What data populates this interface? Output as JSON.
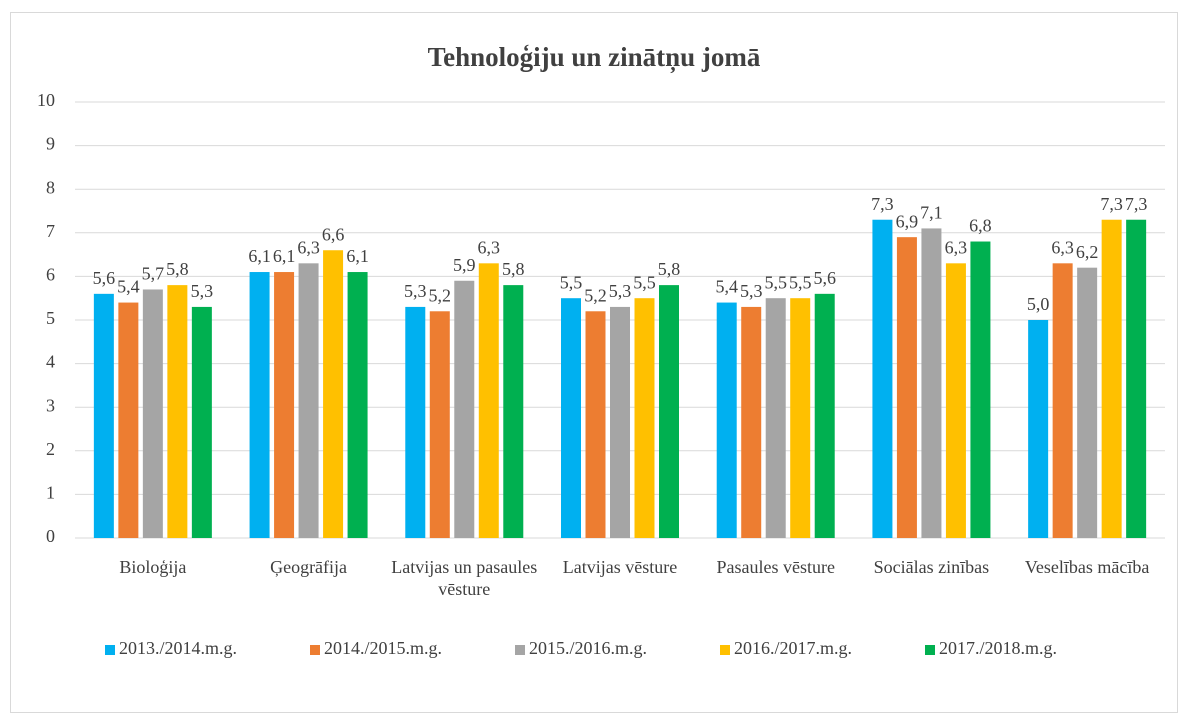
{
  "chart_data": {
    "type": "bar",
    "title": "Tehnoloģiju un zinātņu jomā",
    "categories": [
      "Bioloģija",
      "Ģeogrāfija",
      "Latvijas un pasaules vēsture",
      "Latvijas vēsture",
      "Pasaules vēsture",
      "Sociālas zinības",
      "Veselības mācība"
    ],
    "series": [
      {
        "name": "2013./2014.m.g.",
        "color": "#00b0f0",
        "values": [
          5.6,
          6.1,
          5.3,
          5.5,
          5.4,
          7.3,
          5.0
        ],
        "value_labels": [
          "5,6",
          "6,1",
          "5,3",
          "5,5",
          "5,4",
          "7,3",
          "5,0"
        ]
      },
      {
        "name": "2014./2015.m.g.",
        "color": "#ed7d31",
        "values": [
          5.4,
          6.1,
          5.2,
          5.2,
          5.3,
          6.9,
          6.3
        ],
        "value_labels": [
          "5,4",
          "6,1",
          "5,2",
          "5,2",
          "5,3",
          "6,9",
          "6,3"
        ]
      },
      {
        "name": "2015./2016.m.g.",
        "color": "#a5a5a5",
        "values": [
          5.7,
          6.3,
          5.9,
          5.3,
          5.5,
          7.1,
          6.2
        ],
        "value_labels": [
          "5,7",
          "6,3",
          "5,9",
          "5,3",
          "5,5",
          "7,1",
          "6,2"
        ]
      },
      {
        "name": "2016./2017.m.g.",
        "color": "#ffc000",
        "values": [
          5.8,
          6.6,
          6.3,
          5.5,
          5.5,
          6.3,
          7.3
        ],
        "value_labels": [
          "5,8",
          "6,6",
          "6,3",
          "5,5",
          "5,5",
          "6,3",
          "7,3"
        ]
      },
      {
        "name": "2017./2018.m.g.",
        "color": "#00b050",
        "values": [
          5.3,
          6.1,
          5.8,
          5.8,
          5.6,
          6.8,
          7.3
        ],
        "value_labels": [
          "5,3",
          "6,1",
          "5,8",
          "5,8",
          "5,6",
          "6,8",
          "7,3"
        ]
      }
    ],
    "ylim": [
      0,
      10
    ],
    "yticks": [
      0,
      1,
      2,
      3,
      4,
      5,
      6,
      7,
      8,
      9,
      10
    ],
    "grid": true,
    "legend": "bottom"
  }
}
